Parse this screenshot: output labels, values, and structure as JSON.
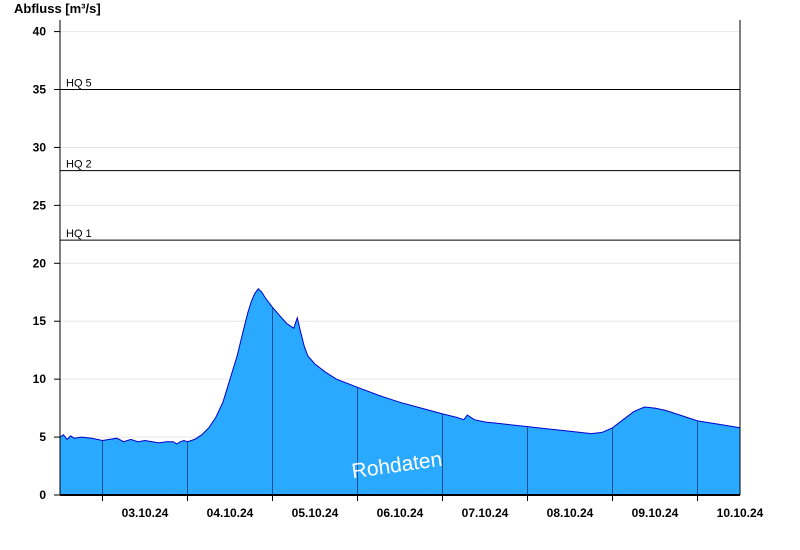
{
  "chart_data": {
    "type": "area",
    "ylabel": "Abfluss [m³/s]",
    "ylim": [
      0,
      41
    ],
    "yticks": [
      0,
      5,
      10,
      15,
      20,
      25,
      30,
      35,
      40
    ],
    "xlim": [
      "2024-10-02T12:00",
      "2024-10-10T12:00"
    ],
    "x_ticks": [
      "03.10.24",
      "04.10.24",
      "05.10.24",
      "06.10.24",
      "07.10.24",
      "08.10.24",
      "09.10.24",
      "10.10.24"
    ],
    "grid": true,
    "watermark": "Rohdaten",
    "series": [
      {
        "x": [
          "2024-10-02T12:00",
          "2024-10-02T13:00",
          "2024-10-02T14:00",
          "2024-10-02T15:00",
          "2024-10-02T16:00",
          "2024-10-02T18:00",
          "2024-10-02T21:00",
          "2024-10-03T00:00",
          "2024-10-03T02:00",
          "2024-10-03T04:00",
          "2024-10-03T06:00",
          "2024-10-03T08:00",
          "2024-10-03T10:00",
          "2024-10-03T12:00",
          "2024-10-03T14:00",
          "2024-10-03T16:00",
          "2024-10-03T18:00",
          "2024-10-03T20:00",
          "2024-10-03T21:00",
          "2024-10-03T22:00",
          "2024-10-03T23:00",
          "2024-10-04T00:00",
          "2024-10-04T02:00",
          "2024-10-04T04:00",
          "2024-10-04T06:00",
          "2024-10-04T08:00",
          "2024-10-04T10:00",
          "2024-10-04T12:00",
          "2024-10-04T14:00",
          "2024-10-04T16:00",
          "2024-10-04T17:00",
          "2024-10-04T18:00",
          "2024-10-04T19:00",
          "2024-10-04T20:00",
          "2024-10-04T21:00",
          "2024-10-04T22:00",
          "2024-10-04T23:00",
          "2024-10-05T00:00",
          "2024-10-05T02:00",
          "2024-10-05T04:00",
          "2024-10-05T06:00",
          "2024-10-05T07:00",
          "2024-10-05T08:00",
          "2024-10-05T09:00",
          "2024-10-05T10:00",
          "2024-10-05T12:00",
          "2024-10-05T15:00",
          "2024-10-05T18:00",
          "2024-10-06T00:00",
          "2024-10-06T06:00",
          "2024-10-06T12:00",
          "2024-10-06T18:00",
          "2024-10-07T00:00",
          "2024-10-07T04:00",
          "2024-10-07T06:00",
          "2024-10-07T07:00",
          "2024-10-07T09:00",
          "2024-10-07T12:00",
          "2024-10-07T18:00",
          "2024-10-08T00:00",
          "2024-10-08T06:00",
          "2024-10-08T12:00",
          "2024-10-08T18:00",
          "2024-10-08T21:00",
          "2024-10-09T00:00",
          "2024-10-09T03:00",
          "2024-10-09T06:00",
          "2024-10-09T09:00",
          "2024-10-09T12:00",
          "2024-10-09T15:00",
          "2024-10-09T18:00",
          "2024-10-09T21:00",
          "2024-10-10T00:00",
          "2024-10-10T06:00",
          "2024-10-10T12:00"
        ],
        "values": [
          5.0,
          5.2,
          4.8,
          5.1,
          4.9,
          5.0,
          4.9,
          4.7,
          4.8,
          4.9,
          4.6,
          4.8,
          4.6,
          4.7,
          4.6,
          4.5,
          4.6,
          4.6,
          4.4,
          4.6,
          4.7,
          4.6,
          4.8,
          5.2,
          5.8,
          6.7,
          8.0,
          10.0,
          12.0,
          14.5,
          15.7,
          16.7,
          17.4,
          17.8,
          17.5,
          17.0,
          16.6,
          16.2,
          15.5,
          14.8,
          14.4,
          15.3,
          14.0,
          12.8,
          12.0,
          11.3,
          10.6,
          10.0,
          9.3,
          8.6,
          8.0,
          7.5,
          7.0,
          6.7,
          6.5,
          6.9,
          6.5,
          6.3,
          6.1,
          5.9,
          5.7,
          5.5,
          5.3,
          5.4,
          5.8,
          6.5,
          7.2,
          7.6,
          7.5,
          7.3,
          7.0,
          6.7,
          6.4,
          6.1,
          5.8
        ]
      }
    ],
    "thresholds": [
      {
        "label": "HQ 1",
        "value": 22
      },
      {
        "label": "HQ 2",
        "value": 28
      },
      {
        "label": "HQ 5",
        "value": 35
      }
    ],
    "colors": {
      "fill": "#29a9ff",
      "stroke": "#0000cc",
      "grid": "#e6e6e6",
      "axis": "#000000",
      "thresholds": "#000000"
    }
  }
}
